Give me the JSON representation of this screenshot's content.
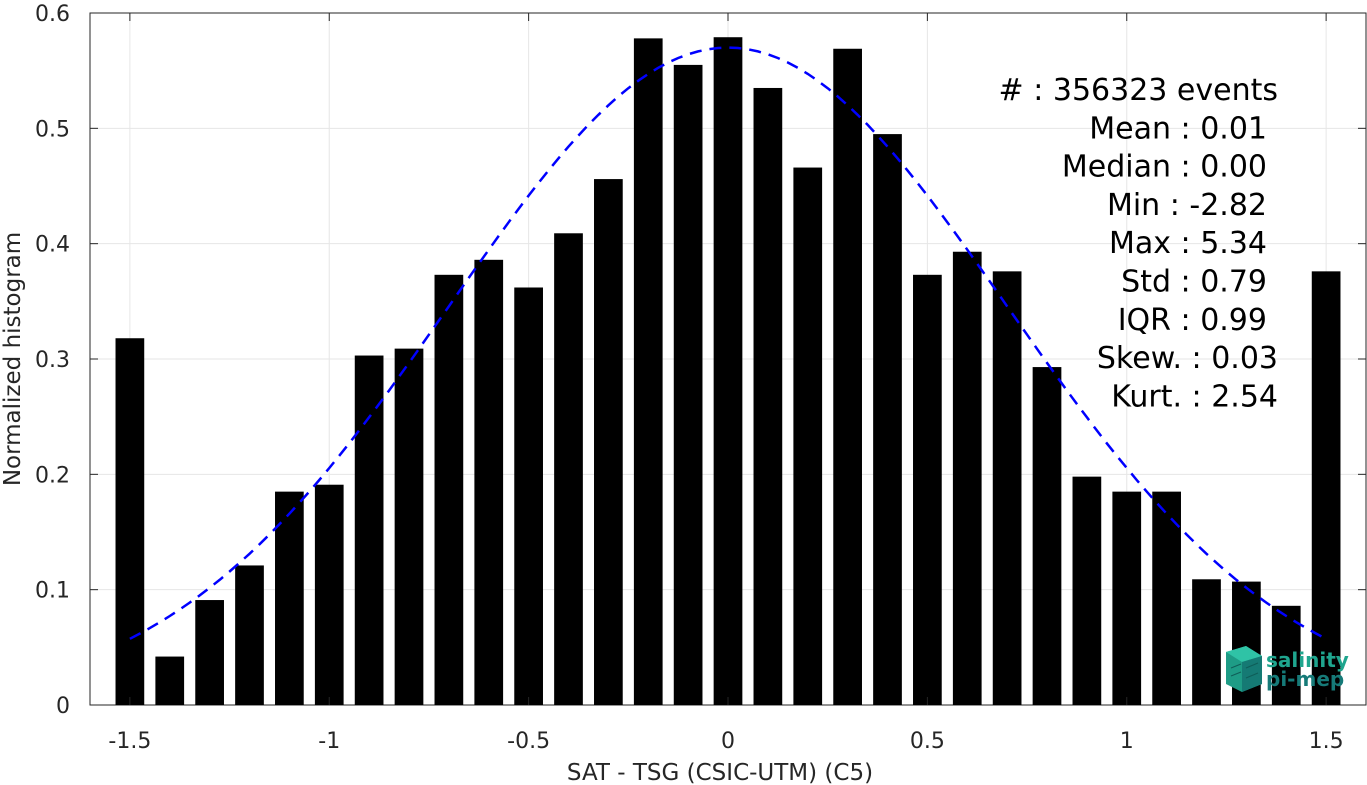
{
  "chart_data": {
    "type": "bar",
    "xlabel": "SAT - TSG (CSIC-UTM) (C5)",
    "ylabel": "Normalized histogram",
    "xlim": [
      -1.6,
      1.6
    ],
    "ylim": [
      0,
      0.6
    ],
    "xticks": [
      -1.5,
      -1,
      -0.5,
      0,
      0.5,
      1,
      1.5
    ],
    "xtick_labels": [
      "-1.5",
      "-1",
      "-0.5",
      "0",
      "0.5",
      "1",
      "1.5"
    ],
    "yticks": [
      0,
      0.1,
      0.2,
      0.3,
      0.4,
      0.5,
      0.6
    ],
    "ytick_labels": [
      "0",
      "0.1",
      "0.2",
      "0.3",
      "0.4",
      "0.5",
      "0.6"
    ],
    "grid": true,
    "bar_color": "#000000",
    "bin_width": 0.1,
    "x": [
      -1.5,
      -1.4,
      -1.3,
      -1.2,
      -1.1,
      -1.0,
      -0.9,
      -0.8,
      -0.7,
      -0.6,
      -0.5,
      -0.4,
      -0.3,
      -0.2,
      -0.1,
      0.0,
      0.1,
      0.2,
      0.3,
      0.4,
      0.5,
      0.6,
      0.7,
      0.8,
      0.9,
      1.0,
      1.1,
      1.2,
      1.3,
      1.4,
      1.5
    ],
    "values": [
      0.318,
      0.042,
      0.091,
      0.121,
      0.185,
      0.191,
      0.303,
      0.309,
      0.373,
      0.386,
      0.362,
      0.409,
      0.456,
      0.578,
      0.555,
      0.579,
      0.535,
      0.466,
      0.569,
      0.495,
      0.373,
      0.393,
      0.376,
      0.293,
      0.198,
      0.185,
      0.185,
      0.109,
      0.107,
      0.086,
      0.376
    ],
    "fit_curve": {
      "style": "dashed",
      "color": "#0000ff",
      "x_range": [
        -1.5,
        1.5
      ],
      "mean": 0.0,
      "sigma": 0.7,
      "peak": 0.57
    },
    "stats_lines": [
      "#  : 356323 events",
      "Mean : 0.01",
      "Median : 0.00",
      "Min : -2.82",
      "Max : 5.34",
      "Std : 0.79",
      "IQR : 0.99",
      "Skew. : 0.03",
      "Kurt. : 2.54"
    ]
  },
  "logo": {
    "line1": "salinity",
    "line2": "pi-mep",
    "color_line1": "#1fa58e",
    "color_line2": "#167a78"
  }
}
